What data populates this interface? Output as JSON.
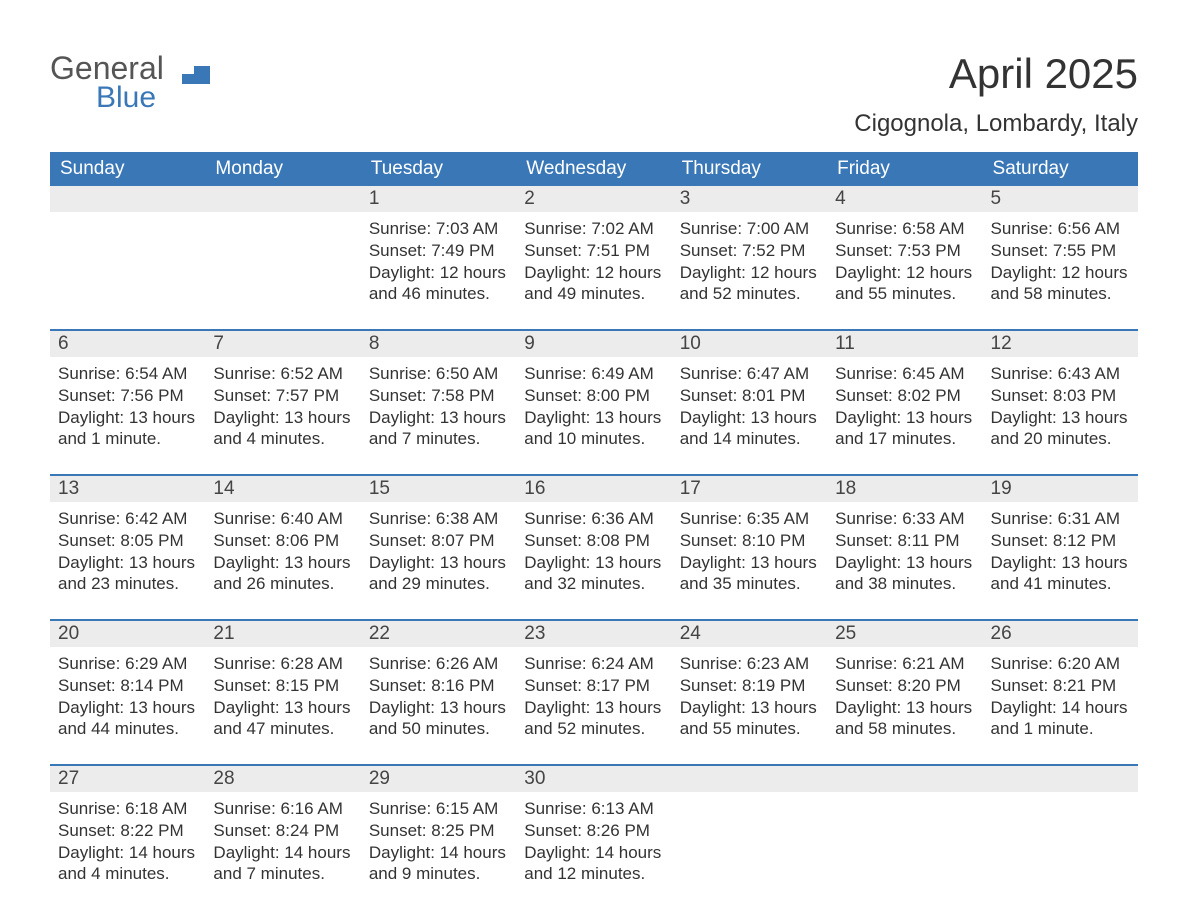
{
  "logo": {
    "text1": "General",
    "text2": "Blue",
    "main_color": "#3a77b7",
    "gray": "#555555"
  },
  "title": "April 2025",
  "location": "Cigognola, Lombardy, Italy",
  "colors": {
    "header_bg": "#3a77b7",
    "header_text": "#ffffff",
    "daynum_bg": "#ececec",
    "text": "#333333",
    "row_border": "#3a77b7",
    "page_bg": "#ffffff"
  },
  "fonts": {
    "title_size": 42,
    "location_size": 24,
    "header_size": 19,
    "body_size": 17
  },
  "day_headers": [
    "Sunday",
    "Monday",
    "Tuesday",
    "Wednesday",
    "Thursday",
    "Friday",
    "Saturday"
  ],
  "weeks": [
    [
      {
        "day": "",
        "lines": [
          "",
          "",
          "",
          ""
        ]
      },
      {
        "day": "",
        "lines": [
          "",
          "",
          "",
          ""
        ]
      },
      {
        "day": "1",
        "lines": [
          "Sunrise: 7:03 AM",
          "Sunset: 7:49 PM",
          "Daylight: 12 hours",
          "and 46 minutes."
        ]
      },
      {
        "day": "2",
        "lines": [
          "Sunrise: 7:02 AM",
          "Sunset: 7:51 PM",
          "Daylight: 12 hours",
          "and 49 minutes."
        ]
      },
      {
        "day": "3",
        "lines": [
          "Sunrise: 7:00 AM",
          "Sunset: 7:52 PM",
          "Daylight: 12 hours",
          "and 52 minutes."
        ]
      },
      {
        "day": "4",
        "lines": [
          "Sunrise: 6:58 AM",
          "Sunset: 7:53 PM",
          "Daylight: 12 hours",
          "and 55 minutes."
        ]
      },
      {
        "day": "5",
        "lines": [
          "Sunrise: 6:56 AM",
          "Sunset: 7:55 PM",
          "Daylight: 12 hours",
          "and 58 minutes."
        ]
      }
    ],
    [
      {
        "day": "6",
        "lines": [
          "Sunrise: 6:54 AM",
          "Sunset: 7:56 PM",
          "Daylight: 13 hours",
          "and 1 minute."
        ]
      },
      {
        "day": "7",
        "lines": [
          "Sunrise: 6:52 AM",
          "Sunset: 7:57 PM",
          "Daylight: 13 hours",
          "and 4 minutes."
        ]
      },
      {
        "day": "8",
        "lines": [
          "Sunrise: 6:50 AM",
          "Sunset: 7:58 PM",
          "Daylight: 13 hours",
          "and 7 minutes."
        ]
      },
      {
        "day": "9",
        "lines": [
          "Sunrise: 6:49 AM",
          "Sunset: 8:00 PM",
          "Daylight: 13 hours",
          "and 10 minutes."
        ]
      },
      {
        "day": "10",
        "lines": [
          "Sunrise: 6:47 AM",
          "Sunset: 8:01 PM",
          "Daylight: 13 hours",
          "and 14 minutes."
        ]
      },
      {
        "day": "11",
        "lines": [
          "Sunrise: 6:45 AM",
          "Sunset: 8:02 PM",
          "Daylight: 13 hours",
          "and 17 minutes."
        ]
      },
      {
        "day": "12",
        "lines": [
          "Sunrise: 6:43 AM",
          "Sunset: 8:03 PM",
          "Daylight: 13 hours",
          "and 20 minutes."
        ]
      }
    ],
    [
      {
        "day": "13",
        "lines": [
          "Sunrise: 6:42 AM",
          "Sunset: 8:05 PM",
          "Daylight: 13 hours",
          "and 23 minutes."
        ]
      },
      {
        "day": "14",
        "lines": [
          "Sunrise: 6:40 AM",
          "Sunset: 8:06 PM",
          "Daylight: 13 hours",
          "and 26 minutes."
        ]
      },
      {
        "day": "15",
        "lines": [
          "Sunrise: 6:38 AM",
          "Sunset: 8:07 PM",
          "Daylight: 13 hours",
          "and 29 minutes."
        ]
      },
      {
        "day": "16",
        "lines": [
          "Sunrise: 6:36 AM",
          "Sunset: 8:08 PM",
          "Daylight: 13 hours",
          "and 32 minutes."
        ]
      },
      {
        "day": "17",
        "lines": [
          "Sunrise: 6:35 AM",
          "Sunset: 8:10 PM",
          "Daylight: 13 hours",
          "and 35 minutes."
        ]
      },
      {
        "day": "18",
        "lines": [
          "Sunrise: 6:33 AM",
          "Sunset: 8:11 PM",
          "Daylight: 13 hours",
          "and 38 minutes."
        ]
      },
      {
        "day": "19",
        "lines": [
          "Sunrise: 6:31 AM",
          "Sunset: 8:12 PM",
          "Daylight: 13 hours",
          "and 41 minutes."
        ]
      }
    ],
    [
      {
        "day": "20",
        "lines": [
          "Sunrise: 6:29 AM",
          "Sunset: 8:14 PM",
          "Daylight: 13 hours",
          "and 44 minutes."
        ]
      },
      {
        "day": "21",
        "lines": [
          "Sunrise: 6:28 AM",
          "Sunset: 8:15 PM",
          "Daylight: 13 hours",
          "and 47 minutes."
        ]
      },
      {
        "day": "22",
        "lines": [
          "Sunrise: 6:26 AM",
          "Sunset: 8:16 PM",
          "Daylight: 13 hours",
          "and 50 minutes."
        ]
      },
      {
        "day": "23",
        "lines": [
          "Sunrise: 6:24 AM",
          "Sunset: 8:17 PM",
          "Daylight: 13 hours",
          "and 52 minutes."
        ]
      },
      {
        "day": "24",
        "lines": [
          "Sunrise: 6:23 AM",
          "Sunset: 8:19 PM",
          "Daylight: 13 hours",
          "and 55 minutes."
        ]
      },
      {
        "day": "25",
        "lines": [
          "Sunrise: 6:21 AM",
          "Sunset: 8:20 PM",
          "Daylight: 13 hours",
          "and 58 minutes."
        ]
      },
      {
        "day": "26",
        "lines": [
          "Sunrise: 6:20 AM",
          "Sunset: 8:21 PM",
          "Daylight: 14 hours",
          "and 1 minute."
        ]
      }
    ],
    [
      {
        "day": "27",
        "lines": [
          "Sunrise: 6:18 AM",
          "Sunset: 8:22 PM",
          "Daylight: 14 hours",
          "and 4 minutes."
        ]
      },
      {
        "day": "28",
        "lines": [
          "Sunrise: 6:16 AM",
          "Sunset: 8:24 PM",
          "Daylight: 14 hours",
          "and 7 minutes."
        ]
      },
      {
        "day": "29",
        "lines": [
          "Sunrise: 6:15 AM",
          "Sunset: 8:25 PM",
          "Daylight: 14 hours",
          "and 9 minutes."
        ]
      },
      {
        "day": "30",
        "lines": [
          "Sunrise: 6:13 AM",
          "Sunset: 8:26 PM",
          "Daylight: 14 hours",
          "and 12 minutes."
        ]
      },
      {
        "day": "",
        "lines": [
          "",
          "",
          "",
          ""
        ]
      },
      {
        "day": "",
        "lines": [
          "",
          "",
          "",
          ""
        ]
      },
      {
        "day": "",
        "lines": [
          "",
          "",
          "",
          ""
        ]
      }
    ]
  ]
}
